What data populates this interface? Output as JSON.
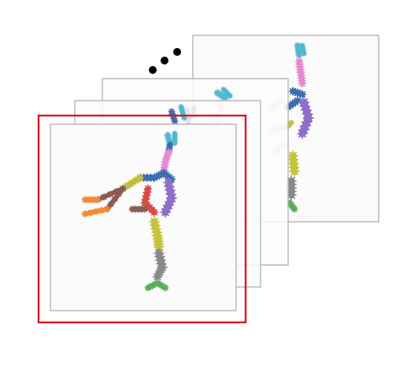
{
  "figure": {
    "continuation": "ellipsis-dots",
    "highlight_color": "#e0141e",
    "frame_border_color": "#b4b4b4",
    "frame_fill_color": "#fbfbfb"
  },
  "frames": [
    {
      "id": "frame-back",
      "opacity": 1.0
    },
    {
      "id": "frame-middle",
      "opacity": 0.22
    },
    {
      "id": "frame-near",
      "opacity": 0.22
    },
    {
      "id": "frame-front",
      "opacity": 1.0,
      "highlighted": true
    }
  ],
  "part_colors": {
    "head": "#4fb9cf",
    "neck": "#e58bd1",
    "torso": "#8e6fc8",
    "shoulder": "#3f6db3",
    "upper-arm": "#bfbf3a",
    "forearm": "#8b5a52",
    "hand": "#f38a2f",
    "pelvis": "#d94a45",
    "thigh": "#c7c43a",
    "shin": "#8a8a8a",
    "foot": "#5aad55"
  }
}
